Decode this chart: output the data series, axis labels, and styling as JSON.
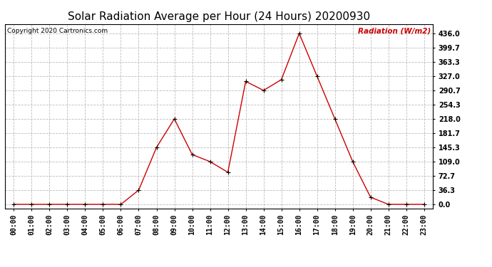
{
  "title": "Solar Radiation Average per Hour (24 Hours) 20200930",
  "copyright_text": "Copyright 2020 Cartronics.com",
  "legend_label": "Radiation (W/m2)",
  "hours": [
    "00:00",
    "01:00",
    "02:00",
    "03:00",
    "04:00",
    "05:00",
    "06:00",
    "07:00",
    "08:00",
    "09:00",
    "10:00",
    "11:00",
    "12:00",
    "13:00",
    "14:00",
    "15:00",
    "16:00",
    "17:00",
    "18:00",
    "19:00",
    "20:00",
    "21:00",
    "22:00",
    "23:00"
  ],
  "values": [
    0.0,
    0.0,
    0.0,
    0.0,
    0.0,
    0.0,
    0.0,
    36.3,
    145.3,
    218.0,
    127.0,
    109.0,
    81.8,
    313.7,
    290.7,
    318.2,
    436.0,
    327.0,
    218.0,
    109.0,
    18.2,
    0.0,
    0.0,
    0.0
  ],
  "line_color": "#cc0000",
  "marker_color": "#000000",
  "background_color": "#ffffff",
  "grid_color": "#bbbbbb",
  "title_fontsize": 11,
  "tick_fontsize": 7,
  "ylabel_color": "#cc0000",
  "copyright_color": "#000000",
  "yticks": [
    0.0,
    36.3,
    72.7,
    109.0,
    145.3,
    181.7,
    218.0,
    254.3,
    290.7,
    327.0,
    363.3,
    399.7,
    436.0
  ],
  "ylim": [
    -10,
    460
  ],
  "figwidth": 6.9,
  "figheight": 3.75,
  "dpi": 100
}
